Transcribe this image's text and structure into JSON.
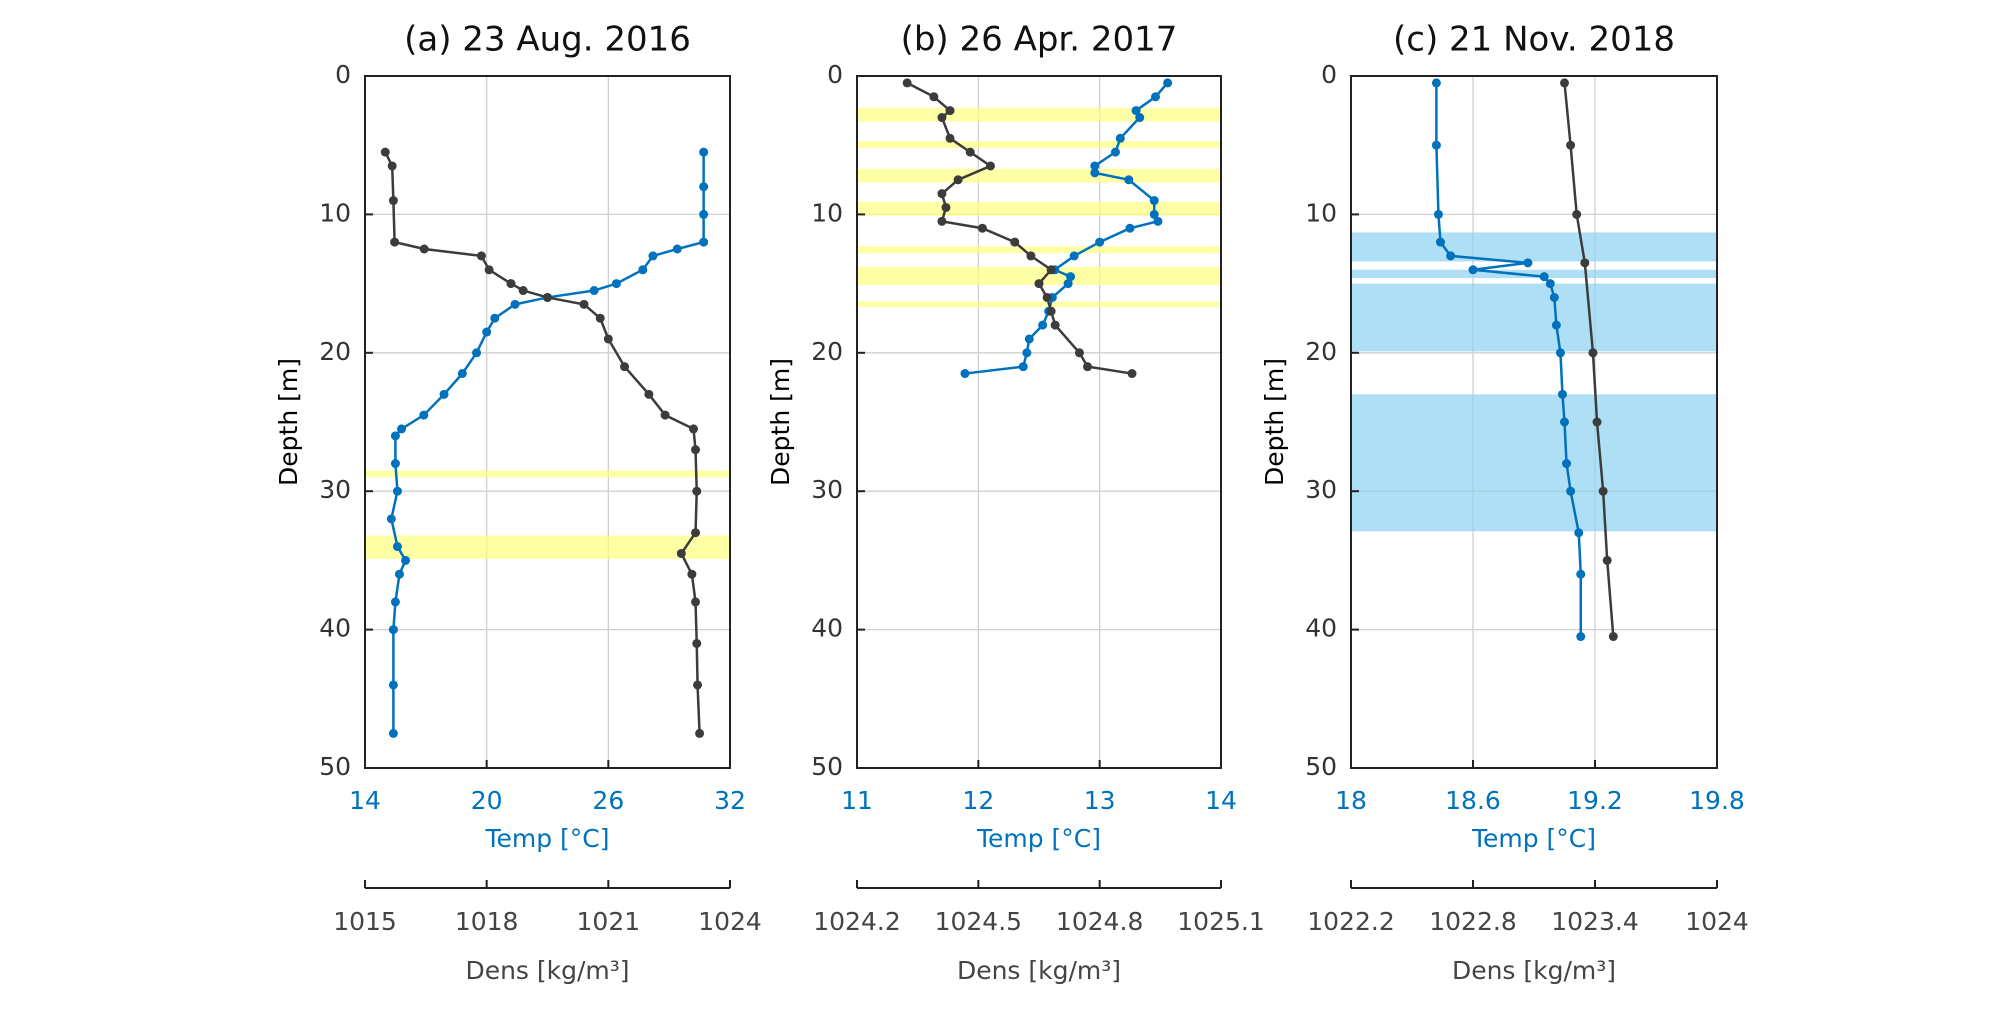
{
  "chart_data": [
    {
      "type": "line",
      "title": "(a) 23 Aug. 2016",
      "ylabel": "Depth [m]",
      "xlabel": "Temp [°C]",
      "x2label": "Dens [kg/m³]",
      "ylim": [
        0,
        50
      ],
      "yticks": [
        0,
        10,
        20,
        30,
        40,
        50
      ],
      "y_reversed": true,
      "grid": true,
      "xlim": [
        14,
        32
      ],
      "xticks": [
        14,
        20,
        26,
        32
      ],
      "x2lim": [
        1015,
        1024
      ],
      "x2ticks": [
        1015,
        1018,
        1021,
        1024
      ],
      "band_color": "#ffff80",
      "bands": [
        [
          28.5,
          29.0
        ],
        [
          33.2,
          34.9
        ]
      ],
      "series": [
        {
          "color": "#0072bd",
          "axis": "x",
          "y": [
            5.5,
            8,
            10,
            12,
            12.5,
            13,
            14,
            15,
            15.5,
            16,
            16.5,
            17.5,
            18.5,
            20,
            21.5,
            23,
            24.5,
            25.5,
            26,
            28,
            30,
            32,
            34,
            35,
            36,
            38,
            40,
            44,
            47.5
          ],
          "x": [
            30.7,
            30.7,
            30.7,
            30.7,
            29.4,
            28.2,
            27.7,
            26.4,
            25.3,
            23.0,
            21.4,
            20.4,
            20.0,
            19.5,
            18.8,
            17.9,
            16.9,
            15.8,
            15.5,
            15.5,
            15.6,
            15.3,
            15.6,
            16.0,
            15.7,
            15.5,
            15.4,
            15.4,
            15.4
          ]
        },
        {
          "color": "#3c3c3c",
          "axis": "x2",
          "y": [
            5.5,
            6.5,
            9,
            12,
            12.5,
            13,
            14,
            15,
            15.5,
            16,
            16.5,
            17.5,
            19,
            21,
            23,
            24.5,
            25.5,
            27,
            30,
            33,
            34.5,
            36,
            38,
            41,
            44,
            47.5
          ],
          "x": [
            1015.5,
            1015.67,
            1015.7,
            1015.73,
            1016.46,
            1017.87,
            1018.06,
            1018.6,
            1018.9,
            1019.5,
            1020.4,
            1020.8,
            1021.0,
            1021.4,
            1022.0,
            1022.4,
            1023.1,
            1023.15,
            1023.18,
            1023.15,
            1022.8,
            1023.06,
            1023.15,
            1023.18,
            1023.2,
            1023.25
          ]
        }
      ]
    },
    {
      "type": "line",
      "title": "(b) 26 Apr. 2017",
      "ylabel": "Depth [m]",
      "xlabel": "Temp [°C]",
      "x2label": "Dens [kg/m³]",
      "ylim": [
        0,
        50
      ],
      "yticks": [
        0,
        10,
        20,
        30,
        40,
        50
      ],
      "y_reversed": true,
      "grid": true,
      "xlim": [
        11,
        14
      ],
      "xticks": [
        11,
        12,
        13,
        14
      ],
      "x2lim": [
        1024.2,
        1025.1
      ],
      "x2ticks": [
        1024.2,
        1024.5,
        1024.8,
        1025.1
      ],
      "band_color": "#ffff80",
      "bands": [
        [
          2.3,
          3.3
        ],
        [
          4.7,
          5.2
        ],
        [
          6.7,
          7.7
        ],
        [
          9.1,
          10.1
        ],
        [
          12.3,
          12.8
        ],
        [
          13.8,
          15.1
        ],
        [
          16.3,
          16.7
        ]
      ],
      "series": [
        {
          "color": "#0072bd",
          "axis": "x",
          "y": [
            0.5,
            1.5,
            2.5,
            3,
            4.5,
            5.5,
            6.5,
            7,
            7.5,
            9,
            10,
            10.5,
            11,
            12,
            13,
            14,
            14.5,
            15,
            16,
            17,
            18,
            19,
            20,
            21,
            21.5
          ],
          "x": [
            13.56,
            13.46,
            13.3,
            13.33,
            13.17,
            13.13,
            12.96,
            12.96,
            13.24,
            13.45,
            13.45,
            13.48,
            13.25,
            13.0,
            12.79,
            12.63,
            12.76,
            12.74,
            12.61,
            12.58,
            12.53,
            12.42,
            12.4,
            12.37,
            11.89
          ]
        },
        {
          "color": "#3c3c3c",
          "axis": "x2",
          "y": [
            0.5,
            1.5,
            2.5,
            3,
            4.5,
            5.5,
            6.5,
            7.5,
            8.5,
            9.5,
            10.5,
            11,
            12,
            13,
            14,
            15,
            16,
            17,
            18,
            20,
            21,
            21.5
          ],
          "x": [
            1024.324,
            1024.39,
            1024.43,
            1024.41,
            1024.43,
            1024.48,
            1024.53,
            1024.45,
            1024.41,
            1024.42,
            1024.41,
            1024.51,
            1024.59,
            1024.63,
            1024.68,
            1024.65,
            1024.67,
            1024.68,
            1024.69,
            1024.75,
            1024.77,
            1024.88
          ]
        }
      ]
    },
    {
      "type": "line",
      "title": "(c) 21 Nov. 2018",
      "ylabel": "Depth [m]",
      "xlabel": "Temp [°C]",
      "x2label": "Dens [kg/m³]",
      "ylim": [
        0,
        50
      ],
      "yticks": [
        0,
        10,
        20,
        30,
        40,
        50
      ],
      "y_reversed": true,
      "grid": true,
      "xlim": [
        18,
        19.8
      ],
      "xticks": [
        18,
        18.6,
        19.2,
        19.8
      ],
      "x2lim": [
        1022.2,
        1024
      ],
      "x2ticks": [
        1022.2,
        1022.8,
        1023.4,
        1024
      ],
      "band_color": "#8dd1ef",
      "bands": [
        [
          11.3,
          13.4
        ],
        [
          14.0,
          14.6
        ],
        [
          15.0,
          19.9
        ],
        [
          23.0,
          32.9
        ]
      ],
      "series": [
        {
          "color": "#0072bd",
          "axis": "x",
          "y": [
            0.5,
            5,
            10,
            12,
            13,
            13.5,
            14,
            14.5,
            15,
            16,
            18,
            20,
            23,
            25,
            28,
            30,
            33,
            36,
            40.5
          ],
          "x": [
            18.42,
            18.42,
            18.43,
            18.44,
            18.49,
            18.87,
            18.6,
            18.95,
            18.98,
            19.0,
            19.01,
            19.03,
            19.04,
            19.05,
            19.06,
            19.08,
            19.12,
            19.13,
            19.13
          ]
        },
        {
          "color": "#3c3c3c",
          "axis": "x2",
          "y": [
            0.5,
            5,
            10,
            13.5,
            20,
            25,
            30,
            35,
            40.5
          ],
          "x": [
            1023.25,
            1023.28,
            1023.31,
            1023.35,
            1023.39,
            1023.41,
            1023.44,
            1023.46,
            1023.49
          ]
        }
      ]
    }
  ]
}
